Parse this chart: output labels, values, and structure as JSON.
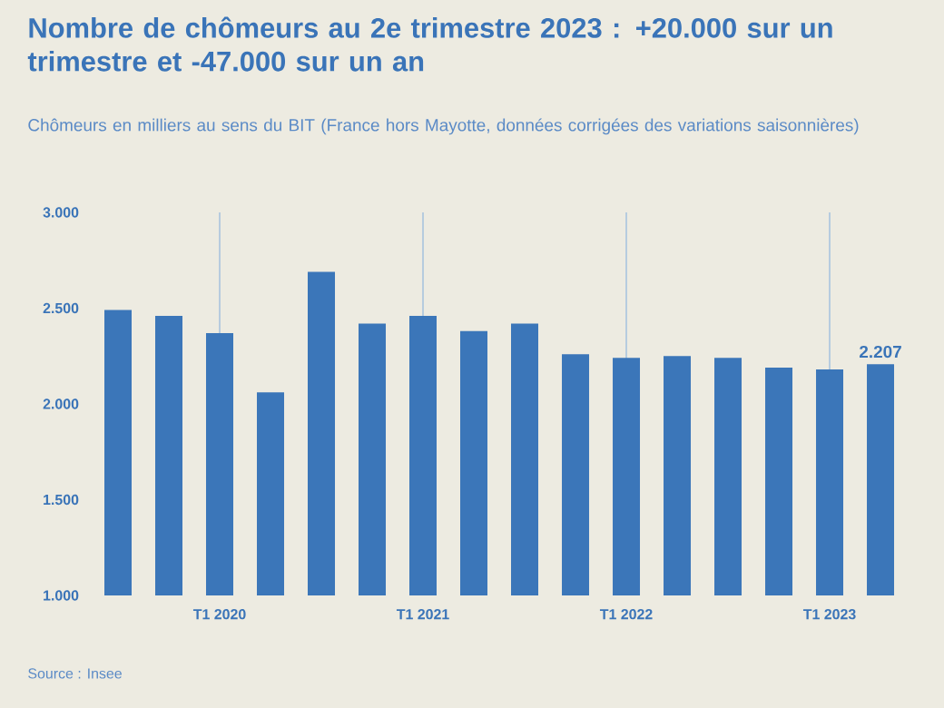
{
  "chart_data": {
    "type": "bar",
    "title": "Nombre de chômeurs au 2e trimestre 2023 : +20.000 sur un trimestre et -47.000 sur un an",
    "subtitle": "Chômeurs en milliers au sens du BIT (France hors Mayotte, données corrigées des variations saisonnières)",
    "categories": [
      null,
      null,
      "T1 2020",
      null,
      null,
      null,
      "T1 2021",
      null,
      null,
      null,
      "T1 2022",
      null,
      null,
      null,
      "T1 2023",
      null
    ],
    "values": [
      2490,
      2460,
      2370,
      2060,
      2690,
      2420,
      2460,
      2380,
      2420,
      2260,
      2240,
      2250,
      2240,
      2190,
      2180,
      2207
    ],
    "value_labels": [
      null,
      null,
      null,
      null,
      null,
      null,
      null,
      null,
      null,
      null,
      null,
      null,
      null,
      null,
      null,
      "2.207"
    ],
    "color": "#3b76b9",
    "ylim": [
      1000,
      3000
    ],
    "yticks": [
      {
        "value": 1000,
        "label": "1.000"
      },
      {
        "value": 1500,
        "label": "1.500"
      },
      {
        "value": 2000,
        "label": "2.000"
      },
      {
        "value": 2500,
        "label": "2.500"
      },
      {
        "value": 3000,
        "label": "3.000"
      }
    ],
    "grid": "x",
    "annotations": [
      "Source : Insee"
    ]
  }
}
